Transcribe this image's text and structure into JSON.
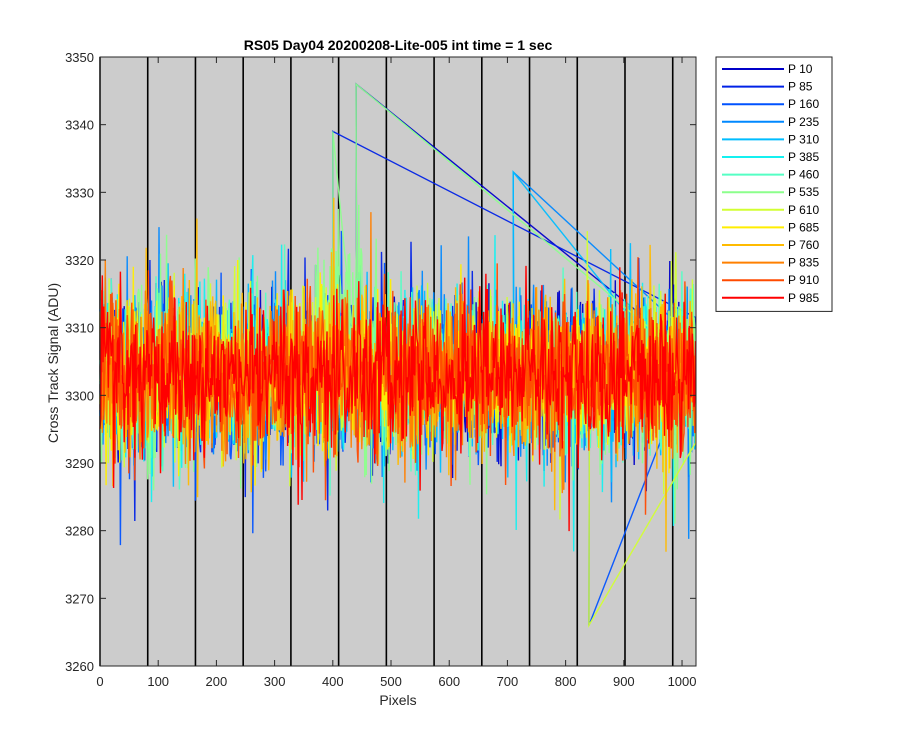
{
  "chart_data": {
    "type": "line",
    "title": "RS05 Day04 20200208-Lite-005 int time = 1 sec",
    "xlabel": "Pixels",
    "ylabel": "Cross Track Signal (ADU)",
    "xlim": [
      0,
      1024
    ],
    "ylim": [
      3260,
      3350
    ],
    "xticks": [
      0,
      100,
      200,
      300,
      400,
      500,
      600,
      700,
      800,
      900,
      1000
    ],
    "yticks": [
      3260,
      3270,
      3280,
      3290,
      3300,
      3310,
      3320,
      3330,
      3340,
      3350
    ],
    "background": "#cccccc",
    "vertical_lines_x": [
      0,
      82,
      164,
      246,
      328,
      410,
      492,
      574,
      656,
      738,
      820,
      902,
      984
    ],
    "legend_position": "outside-top-right",
    "mean_level": 3303,
    "noise_range": [
      3282,
      3324
    ],
    "noise_note": "per-pixel values are dense random noise; exact points not readable",
    "series": [
      {
        "name": "P 10",
        "color": "#0000c8"
      },
      {
        "name": "P 85",
        "color": "#0022e6"
      },
      {
        "name": "P 160",
        "color": "#0052ff"
      },
      {
        "name": "P 235",
        "color": "#0088ff"
      },
      {
        "name": "P 310",
        "color": "#00bdff"
      },
      {
        "name": "P 385",
        "color": "#14f0f0"
      },
      {
        "name": "P 460",
        "color": "#55ffc4"
      },
      {
        "name": "P 535",
        "color": "#8cff8c"
      },
      {
        "name": "P 610",
        "color": "#d2ff32"
      },
      {
        "name": "P 685",
        "color": "#ffee00"
      },
      {
        "name": "P 760",
        "color": "#ffbb00"
      },
      {
        "name": "P 835",
        "color": "#ff8000"
      },
      {
        "name": "P 910",
        "color": "#ff4a00"
      },
      {
        "name": "P 985",
        "color": "#ff0000"
      }
    ],
    "notable_peaks": [
      {
        "x": 440,
        "y": 3346
      },
      {
        "x": 400,
        "y": 3339
      },
      {
        "x": 840,
        "y": 3266
      },
      {
        "x": 710,
        "y": 3333
      }
    ]
  }
}
